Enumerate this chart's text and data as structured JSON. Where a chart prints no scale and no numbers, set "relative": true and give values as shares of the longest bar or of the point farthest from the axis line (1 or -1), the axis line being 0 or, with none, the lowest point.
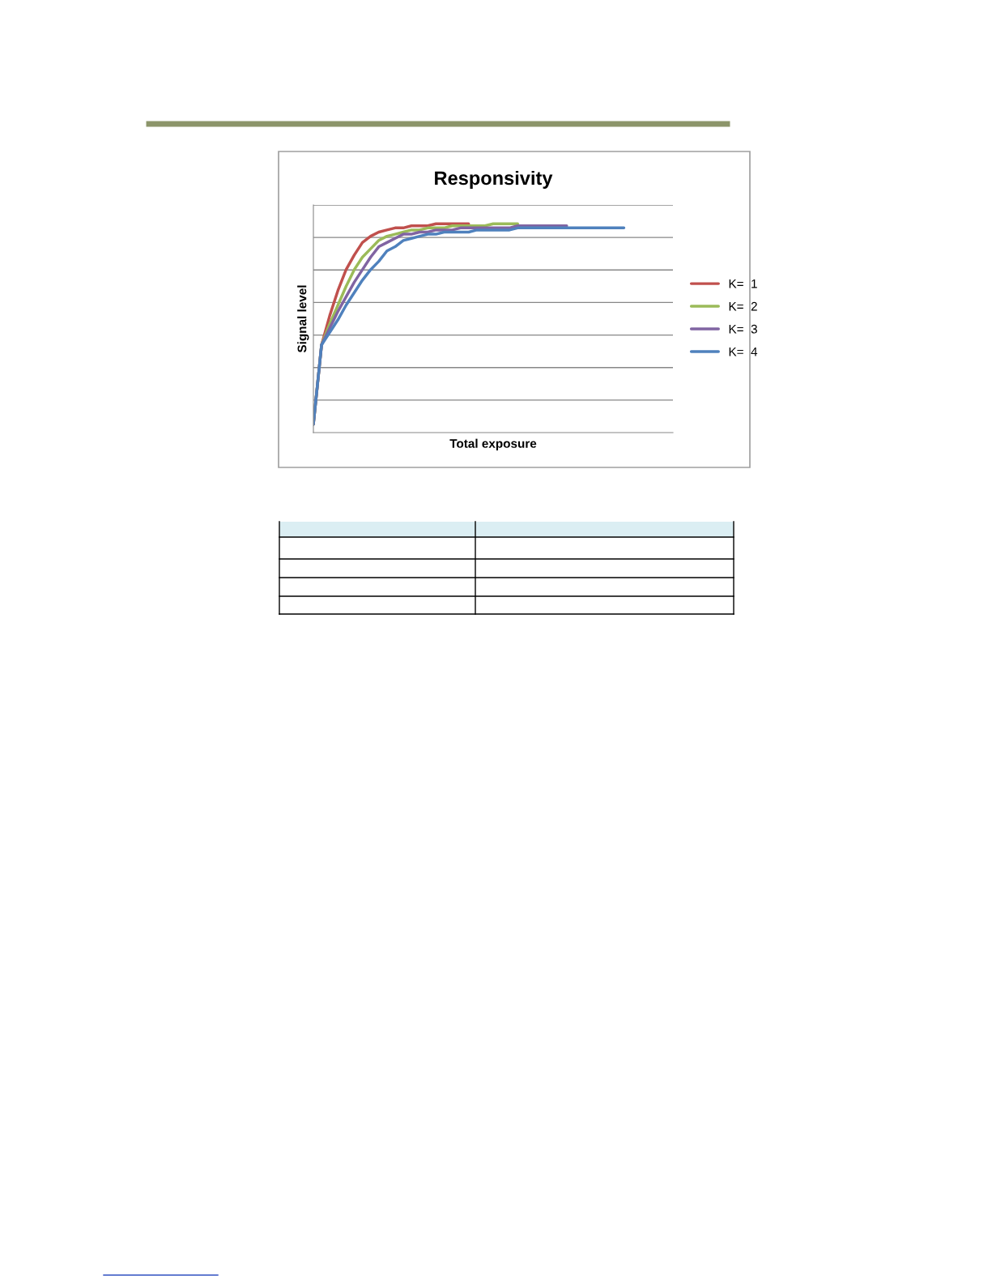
{
  "chart_data": {
    "type": "line",
    "title": "Responsivity",
    "xlabel": "Total exposure",
    "ylabel": "Signal level",
    "relative": true,
    "grid": "y",
    "legend": "right",
    "marker": "none",
    "line_style": "solid",
    "categories": [
      null,
      null,
      null,
      null,
      null,
      null,
      null,
      null,
      null,
      null,
      null,
      null,
      null,
      null,
      null,
      null,
      null,
      null,
      null,
      null,
      null,
      null,
      null,
      null,
      null,
      null,
      null,
      null,
      null,
      null,
      null,
      null,
      null,
      null,
      null,
      null,
      null,
      null,
      null,
      null,
      null,
      null,
      null,
      null,
      null
    ],
    "series": [
      {
        "name": "K=  1",
        "color": "#c0504d",
        "values": [
          0.04,
          0.42,
          0.56,
          0.68,
          0.78,
          0.85,
          0.91,
          0.94,
          0.96,
          0.97,
          0.98,
          0.98,
          0.99,
          0.99,
          0.99,
          1.0,
          1.0,
          1.0,
          1.0,
          1.0,
          null,
          null,
          null,
          null,
          null,
          null,
          null,
          null,
          null,
          null,
          null,
          null,
          null,
          null,
          null,
          null,
          null,
          null,
          null,
          null,
          null,
          null,
          null,
          null,
          null
        ]
      },
      {
        "name": "K=  2",
        "color": "#9bbb59",
        "values": [
          0.04,
          0.42,
          0.52,
          0.61,
          0.7,
          0.78,
          0.84,
          0.88,
          0.92,
          0.94,
          0.95,
          0.96,
          0.97,
          0.97,
          0.98,
          0.98,
          0.98,
          0.99,
          0.99,
          0.99,
          0.99,
          0.99,
          1.0,
          1.0,
          1.0,
          1.0,
          null,
          null,
          null,
          null,
          null,
          null,
          null,
          null,
          null,
          null,
          null,
          null,
          null,
          null,
          null,
          null,
          null,
          null,
          null
        ]
      },
      {
        "name": "K=  3",
        "color": "#8064a2",
        "values": [
          0.04,
          0.42,
          0.5,
          0.58,
          0.65,
          0.72,
          0.78,
          0.84,
          0.89,
          0.91,
          0.93,
          0.95,
          0.95,
          0.96,
          0.96,
          0.97,
          0.97,
          0.97,
          0.98,
          0.98,
          0.98,
          0.98,
          0.98,
          0.98,
          0.98,
          0.99,
          0.99,
          0.99,
          0.99,
          0.99,
          0.99,
          0.99,
          null,
          null,
          null,
          null,
          null,
          null,
          null,
          null,
          null,
          null,
          null,
          null,
          null
        ]
      },
      {
        "name": "K=  4",
        "color": "#4f81bd",
        "values": [
          0.04,
          0.42,
          0.48,
          0.54,
          0.61,
          0.67,
          0.73,
          0.78,
          0.82,
          0.87,
          0.89,
          0.92,
          0.93,
          0.94,
          0.95,
          0.95,
          0.96,
          0.96,
          0.96,
          0.96,
          0.97,
          0.97,
          0.97,
          0.97,
          0.97,
          0.98,
          0.98,
          0.98,
          0.98,
          0.98,
          0.98,
          0.98,
          0.98,
          0.98,
          0.98,
          0.98,
          0.98,
          0.98,
          0.98,
          null,
          null,
          null,
          null,
          null,
          null
        ]
      }
    ]
  }
}
